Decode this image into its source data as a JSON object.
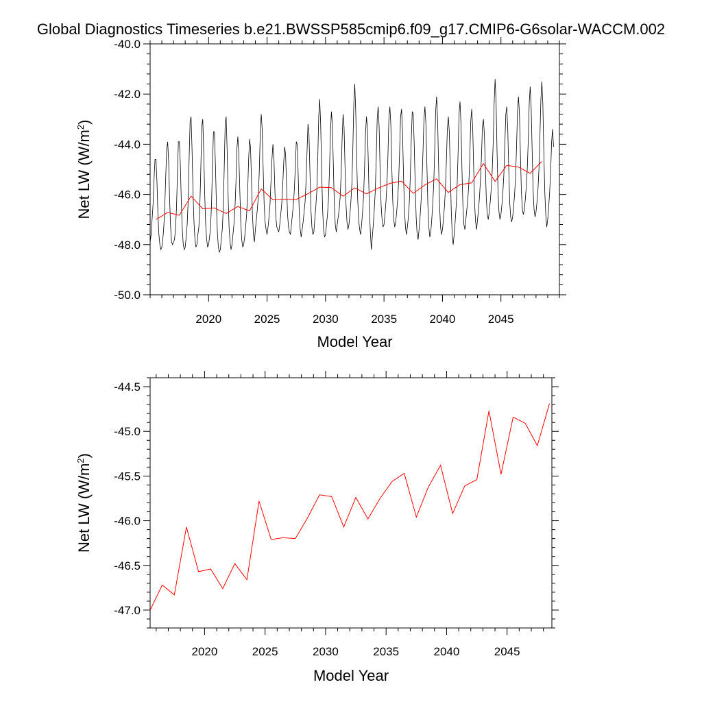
{
  "figure": {
    "title": "Global Diagnostics Timeseries b.e21.BWSSP585cmip6.f09_g17.CMIP6-G6solar-WACCM.002"
  },
  "colors": {
    "monthly": "#000000",
    "annual": "#ff0000",
    "axis": "#000000"
  },
  "chart_data": [
    {
      "type": "line",
      "xlabel": "Model Year",
      "ylabel": "Net LW (W/m²)",
      "ylabel_main": "Net LW (W/m",
      "ylabel_sup": "2",
      "ylabel_close": ")",
      "xlim": [
        2015,
        2050
      ],
      "ylim": [
        -50.0,
        -40.0
      ],
      "xticks": [
        2020,
        2025,
        2030,
        2035,
        2040,
        2045
      ],
      "xtick_labels": [
        "2020",
        "2025",
        "2030",
        "2035",
        "2040",
        "2045"
      ],
      "yticks": [
        -50,
        -48,
        -46,
        -44,
        -42,
        -40
      ],
      "ytick_labels": [
        "-50.0",
        "-48.0",
        "-46.0",
        "-44.0",
        "-42.0",
        "-40.0"
      ],
      "grid": false,
      "series": [
        {
          "color": "#000000",
          "style": "monthly",
          "x_start": 2015.0,
          "x_step": 0.0833333,
          "values": [
            -47.9,
            -47.6,
            -47.0,
            -46.4,
            -45.4,
            -44.6,
            -44.6,
            -45.5,
            -46.8,
            -47.6,
            -48.0,
            -48.2,
            -48.1,
            -47.8,
            -47.3,
            -46.5,
            -45.3,
            -44.2,
            -43.9,
            -44.7,
            -46.2,
            -47.3,
            -47.9,
            -48.0,
            -47.9,
            -47.8,
            -47.4,
            -46.6,
            -45.2,
            -43.9,
            -43.9,
            -44.8,
            -46.3,
            -47.4,
            -48.0,
            -48.2,
            -48.1,
            -47.7,
            -47.2,
            -46.3,
            -44.6,
            -43.1,
            -42.9,
            -44.2,
            -45.9,
            -47.1,
            -47.8,
            -48.1,
            -48.0,
            -47.6,
            -47.3,
            -46.5,
            -45.0,
            -43.3,
            -43.0,
            -44.3,
            -46.0,
            -47.2,
            -47.8,
            -48.1,
            -48.0,
            -47.7,
            -47.3,
            -46.4,
            -44.8,
            -43.5,
            -43.5,
            -44.8,
            -46.4,
            -47.5,
            -48.1,
            -48.3,
            -48.2,
            -47.8,
            -47.4,
            -46.6,
            -45.0,
            -43.2,
            -42.9,
            -44.2,
            -46.0,
            -47.3,
            -47.9,
            -48.2,
            -48.0,
            -47.6,
            -47.2,
            -46.6,
            -45.6,
            -44.2,
            -43.7,
            -44.4,
            -45.8,
            -47.1,
            -47.8,
            -48.1,
            -48.0,
            -47.7,
            -47.3,
            -46.8,
            -46.0,
            -44.7,
            -43.8,
            -44.1,
            -45.4,
            -46.8,
            -47.6,
            -47.9,
            -47.4,
            -47.0,
            -46.6,
            -46.1,
            -45.1,
            -43.6,
            -42.8,
            -43.4,
            -45.0,
            -46.4,
            -47.1,
            -47.4,
            -47.6,
            -47.3,
            -46.9,
            -46.4,
            -45.5,
            -44.6,
            -44.0,
            -44.5,
            -45.8,
            -46.9,
            -47.3,
            -47.4,
            -47.5,
            -47.2,
            -46.8,
            -46.4,
            -45.7,
            -44.8,
            -44.1,
            -44.4,
            -45.6,
            -46.8,
            -47.3,
            -47.5,
            -47.6,
            -47.2,
            -46.8,
            -46.4,
            -45.8,
            -44.9,
            -43.9,
            -44.0,
            -45.3,
            -46.7,
            -47.4,
            -47.7,
            -47.4,
            -47.1,
            -46.7,
            -46.3,
            -45.5,
            -44.3,
            -43.2,
            -43.6,
            -45.1,
            -46.6,
            -47.3,
            -47.6,
            -47.5,
            -47.0,
            -46.5,
            -45.9,
            -44.6,
            -42.9,
            -42.2,
            -43.2,
            -45.0,
            -46.6,
            -47.4,
            -47.7,
            -47.6,
            -47.2,
            -46.8,
            -46.2,
            -45.1,
            -43.6,
            -42.7,
            -43.2,
            -44.8,
            -46.4,
            -47.2,
            -47.5,
            -47.2,
            -46.9,
            -46.6,
            -46.1,
            -45.2,
            -43.8,
            -42.8,
            -43.3,
            -44.9,
            -46.4,
            -47.1,
            -47.4,
            -47.2,
            -46.8,
            -46.3,
            -45.6,
            -44.2,
            -42.4,
            -41.6,
            -42.7,
            -44.6,
            -46.2,
            -47.0,
            -47.4,
            -47.6,
            -47.2,
            -46.7,
            -46.1,
            -45.0,
            -43.6,
            -42.9,
            -43.4,
            -44.9,
            -46.6,
            -47.5,
            -48.2,
            -47.7,
            -47.2,
            -46.6,
            -45.9,
            -44.6,
            -43.0,
            -42.5,
            -43.3,
            -45.0,
            -46.4,
            -47.0,
            -47.3,
            -47.2,
            -46.8,
            -46.3,
            -45.6,
            -44.5,
            -43.0,
            -42.5,
            -43.2,
            -44.9,
            -46.3,
            -47.0,
            -47.3,
            -47.1,
            -46.7,
            -46.2,
            -45.5,
            -44.3,
            -42.9,
            -42.6,
            -43.5,
            -45.2,
            -46.6,
            -47.3,
            -47.6,
            -47.3,
            -46.9,
            -46.3,
            -45.3,
            -43.8,
            -42.7,
            -42.8,
            -44.0,
            -45.6,
            -46.9,
            -47.6,
            -47.8,
            -47.4,
            -46.9,
            -46.3,
            -45.5,
            -44.3,
            -43.0,
            -42.5,
            -43.2,
            -44.8,
            -46.4,
            -47.3,
            -47.7,
            -47.5,
            -47.0,
            -46.4,
            -45.6,
            -44.3,
            -42.7,
            -42.1,
            -43.0,
            -44.8,
            -46.4,
            -47.3,
            -47.6,
            -47.4,
            -47.0,
            -46.5,
            -45.8,
            -44.7,
            -43.4,
            -42.9,
            -43.5,
            -45.0,
            -46.6,
            -47.6,
            -48.0,
            -47.6,
            -47.1,
            -46.5,
            -45.7,
            -44.4,
            -42.8,
            -42.3,
            -43.2,
            -45.0,
            -46.5,
            -47.2,
            -47.4,
            -47.0,
            -46.6,
            -46.2,
            -45.6,
            -44.6,
            -43.1,
            -42.6,
            -43.3,
            -44.9,
            -46.4,
            -47.1,
            -47.4,
            -47.0,
            -46.6,
            -46.1,
            -45.4,
            -44.5,
            -43.3,
            -43.0,
            -43.6,
            -44.9,
            -46.2,
            -46.8,
            -47.0,
            -46.7,
            -46.3,
            -45.8,
            -45.1,
            -44.0,
            -42.4,
            -41.4,
            -42.3,
            -44.3,
            -45.9,
            -46.7,
            -47.0,
            -46.8,
            -46.4,
            -45.9,
            -45.2,
            -44.0,
            -42.8,
            -42.5,
            -43.4,
            -45.0,
            -46.3,
            -46.9,
            -47.1,
            -46.9,
            -46.5,
            -46.0,
            -45.3,
            -44.1,
            -42.7,
            -42.1,
            -42.8,
            -44.4,
            -45.9,
            -46.6,
            -46.8,
            -46.6,
            -46.2,
            -45.7,
            -45.0,
            -43.9,
            -42.4,
            -41.7,
            -42.5,
            -44.2,
            -45.8,
            -46.6,
            -46.9,
            -46.7,
            -46.3,
            -45.8,
            -45.0,
            -43.7,
            -42.2,
            -41.5,
            -42.4,
            -44.3,
            -45.9,
            -46.8,
            -47.3,
            -47.0,
            -46.5,
            -45.9,
            -45.1,
            -43.9,
            -43.4,
            -44.1
          ]
        },
        {
          "color": "#ff0000",
          "style": "annual",
          "x": [
            2015.5,
            2016.5,
            2017.5,
            2018.5,
            2019.5,
            2020.5,
            2021.5,
            2022.5,
            2023.5,
            2024.5,
            2025.5,
            2026.5,
            2027.5,
            2028.5,
            2029.5,
            2030.5,
            2031.5,
            2032.5,
            2033.5,
            2034.5,
            2035.5,
            2036.5,
            2037.5,
            2038.5,
            2039.5,
            2040.5,
            2041.5,
            2042.5,
            2043.5,
            2044.5,
            2045.5,
            2046.5,
            2047.5,
            2048.5
          ],
          "values": [
            -47.0,
            -46.72,
            -46.83,
            -46.07,
            -46.57,
            -46.54,
            -46.76,
            -46.48,
            -46.66,
            -45.78,
            -46.21,
            -46.19,
            -46.2,
            -45.97,
            -45.71,
            -45.73,
            -46.07,
            -45.74,
            -45.98,
            -45.75,
            -45.56,
            -45.47,
            -45.96,
            -45.62,
            -45.38,
            -45.92,
            -45.61,
            -45.54,
            -44.77,
            -45.48,
            -44.84,
            -44.91,
            -45.16,
            -44.69
          ]
        }
      ]
    },
    {
      "type": "line",
      "xlabel": "Model Year",
      "ylabel": "Net LW (W/m²)",
      "ylabel_main": "Net LW (W/m",
      "ylabel_sup": "2",
      "ylabel_close": ")",
      "xlim": [
        2015.5,
        2048.7
      ],
      "ylim": [
        -47.2,
        -44.4
      ],
      "xticks": [
        2020,
        2025,
        2030,
        2035,
        2040,
        2045
      ],
      "xtick_labels": [
        "2020",
        "2025",
        "2030",
        "2035",
        "2040",
        "2045"
      ],
      "yticks": [
        -47.0,
        -46.5,
        -46.0,
        -45.5,
        -45.0,
        -44.5
      ],
      "ytick_labels": [
        "-47.0",
        "-46.5",
        "-46.0",
        "-45.5",
        "-45.0",
        "-44.5"
      ],
      "grid": false,
      "series": [
        {
          "color": "#ff0000",
          "style": "annual",
          "x": [
            2015.5,
            2016.5,
            2017.5,
            2018.5,
            2019.5,
            2020.5,
            2021.5,
            2022.5,
            2023.5,
            2024.5,
            2025.5,
            2026.5,
            2027.5,
            2028.5,
            2029.5,
            2030.5,
            2031.5,
            2032.5,
            2033.5,
            2034.5,
            2035.5,
            2036.5,
            2037.5,
            2038.5,
            2039.5,
            2040.5,
            2041.5,
            2042.5,
            2043.5,
            2044.5,
            2045.5,
            2046.5,
            2047.5,
            2048.5
          ],
          "values": [
            -47.0,
            -46.72,
            -46.83,
            -46.07,
            -46.57,
            -46.54,
            -46.76,
            -46.48,
            -46.66,
            -45.78,
            -46.21,
            -46.19,
            -46.2,
            -45.97,
            -45.71,
            -45.73,
            -46.07,
            -45.74,
            -45.98,
            -45.75,
            -45.56,
            -45.47,
            -45.96,
            -45.62,
            -45.38,
            -45.92,
            -45.61,
            -45.54,
            -44.77,
            -45.48,
            -44.84,
            -44.91,
            -45.16,
            -44.69
          ]
        }
      ]
    }
  ]
}
